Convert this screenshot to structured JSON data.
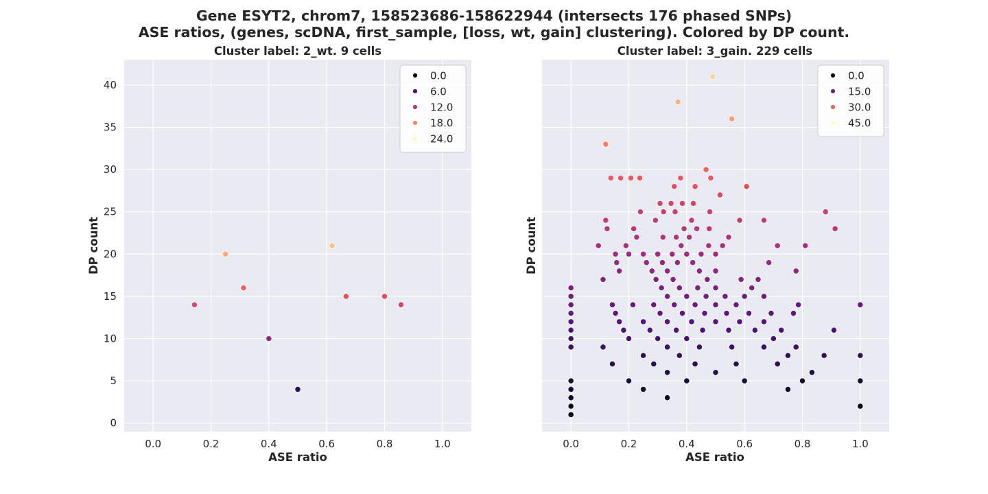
{
  "figure": {
    "title_line1": "Gene ESYT2, chrom7, 158523686-158622944 (intersects 176 phased SNPs)",
    "title_line2": "ASE ratios, (genes, scDNA, first_sample, [loss, wt, gain] clustering). Colored by DP count."
  },
  "chart_data": [
    {
      "type": "scatter",
      "title": "Cluster label: 2_wt. 9 cells",
      "xlabel": "ASE ratio",
      "ylabel": "DP count",
      "xlim": [
        -0.1,
        1.1
      ],
      "ylim": [
        -1,
        43
      ],
      "xticks": [
        0.0,
        0.2,
        0.4,
        0.6,
        0.8,
        1.0
      ],
      "xtick_labels": [
        "0.0",
        "0.2",
        "0.4",
        "0.6",
        "0.8",
        "1.0"
      ],
      "yticks": [
        0,
        5,
        10,
        15,
        20,
        25,
        30,
        35,
        40
      ],
      "ytick_labels": [
        "0",
        "5",
        "10",
        "15",
        "20",
        "25",
        "30",
        "35",
        "40"
      ],
      "show_y_ticklabels": true,
      "grid": true,
      "legend_position": "top-right",
      "color_map": "magma",
      "color_range": [
        0,
        24
      ],
      "legend": [
        {
          "label": "0.0",
          "value": 0
        },
        {
          "label": "6.0",
          "value": 6
        },
        {
          "label": "12.0",
          "value": 12
        },
        {
          "label": "18.0",
          "value": 18
        },
        {
          "label": "24.0",
          "value": 24
        }
      ],
      "points": [
        [
          0.143,
          14
        ],
        [
          0.25,
          20
        ],
        [
          0.3125,
          16
        ],
        [
          0.4,
          10
        ],
        [
          0.5,
          4
        ],
        [
          0.619,
          21
        ],
        [
          0.667,
          15
        ],
        [
          0.8,
          15
        ],
        [
          0.857,
          14
        ]
      ]
    },
    {
      "type": "scatter",
      "title": "Cluster label: 3_gain. 229 cells",
      "xlabel": "ASE ratio",
      "ylabel": "DP count",
      "xlim": [
        -0.1,
        1.1
      ],
      "ylim": [
        -1,
        43
      ],
      "xticks": [
        0.0,
        0.2,
        0.4,
        0.6,
        0.8,
        1.0
      ],
      "xtick_labels": [
        "0.0",
        "0.2",
        "0.4",
        "0.6",
        "0.8",
        "1.0"
      ],
      "yticks": [
        0,
        5,
        10,
        15,
        20,
        25,
        30,
        35,
        40
      ],
      "ytick_labels": [],
      "show_y_ticklabels": false,
      "grid": true,
      "legend_position": "top-right",
      "color_map": "magma",
      "color_range": [
        0,
        45
      ],
      "legend": [
        {
          "label": "0.0",
          "value": 0
        },
        {
          "label": "15.0",
          "value": 15
        },
        {
          "label": "30.0",
          "value": 30
        },
        {
          "label": "45.0",
          "value": 45
        }
      ],
      "points": [
        [
          0.0,
          1
        ],
        [
          0.0,
          2
        ],
        [
          0.0,
          3
        ],
        [
          0.0,
          4
        ],
        [
          0.0,
          5
        ],
        [
          0.0,
          9
        ],
        [
          0.0,
          10
        ],
        [
          0.0,
          11
        ],
        [
          0.0,
          12
        ],
        [
          0.0,
          13
        ],
        [
          0.0,
          14
        ],
        [
          0.0,
          15
        ],
        [
          0.0,
          16
        ],
        [
          0.095,
          21
        ],
        [
          0.111,
          9
        ],
        [
          0.111,
          17
        ],
        [
          0.12,
          24
        ],
        [
          0.12,
          33
        ],
        [
          0.125,
          23
        ],
        [
          0.138,
          29
        ],
        [
          0.143,
          7
        ],
        [
          0.143,
          14
        ],
        [
          0.154,
          13
        ],
        [
          0.154,
          20
        ],
        [
          0.158,
          19
        ],
        [
          0.167,
          12
        ],
        [
          0.167,
          18
        ],
        [
          0.172,
          29
        ],
        [
          0.182,
          11
        ],
        [
          0.19,
          21
        ],
        [
          0.2,
          5
        ],
        [
          0.2,
          10
        ],
        [
          0.2,
          20
        ],
        [
          0.207,
          29
        ],
        [
          0.214,
          14
        ],
        [
          0.217,
          23
        ],
        [
          0.227,
          22
        ],
        [
          0.238,
          29
        ],
        [
          0.24,
          25
        ],
        [
          0.25,
          4
        ],
        [
          0.25,
          8
        ],
        [
          0.25,
          12
        ],
        [
          0.25,
          20
        ],
        [
          0.261,
          19
        ],
        [
          0.273,
          11
        ],
        [
          0.28,
          18
        ],
        [
          0.286,
          7
        ],
        [
          0.286,
          14
        ],
        [
          0.294,
          17
        ],
        [
          0.292,
          24
        ],
        [
          0.3,
          10
        ],
        [
          0.3,
          20
        ],
        [
          0.308,
          13
        ],
        [
          0.308,
          26
        ],
        [
          0.313,
          16
        ],
        [
          0.316,
          19
        ],
        [
          0.318,
          22
        ],
        [
          0.32,
          25
        ],
        [
          0.333,
          3
        ],
        [
          0.333,
          6
        ],
        [
          0.333,
          9
        ],
        [
          0.333,
          12
        ],
        [
          0.333,
          15
        ],
        [
          0.333,
          18
        ],
        [
          0.346,
          26
        ],
        [
          0.353,
          17
        ],
        [
          0.35,
          20
        ],
        [
          0.357,
          14
        ],
        [
          0.357,
          28
        ],
        [
          0.36,
          25
        ],
        [
          0.364,
          11
        ],
        [
          0.364,
          22
        ],
        [
          0.368,
          19
        ],
        [
          0.37,
          38
        ],
        [
          0.375,
          8
        ],
        [
          0.375,
          16
        ],
        [
          0.379,
          29
        ],
        [
          0.381,
          21
        ],
        [
          0.385,
          13
        ],
        [
          0.385,
          26
        ],
        [
          0.391,
          23
        ],
        [
          0.4,
          5
        ],
        [
          0.4,
          10
        ],
        [
          0.4,
          15
        ],
        [
          0.4,
          20
        ],
        [
          0.409,
          22
        ],
        [
          0.417,
          12
        ],
        [
          0.417,
          24
        ],
        [
          0.421,
          19
        ],
        [
          0.423,
          26
        ],
        [
          0.429,
          7
        ],
        [
          0.429,
          14
        ],
        [
          0.429,
          28
        ],
        [
          0.435,
          23
        ],
        [
          0.438,
          16
        ],
        [
          0.444,
          9
        ],
        [
          0.444,
          18
        ],
        [
          0.45,
          20
        ],
        [
          0.455,
          11
        ],
        [
          0.462,
          13
        ],
        [
          0.467,
          15
        ],
        [
          0.467,
          30
        ],
        [
          0.471,
          17
        ],
        [
          0.478,
          23
        ],
        [
          0.476,
          21
        ],
        [
          0.48,
          25
        ],
        [
          0.483,
          29
        ],
        [
          0.49,
          41
        ],
        [
          0.5,
          6
        ],
        [
          0.5,
          12
        ],
        [
          0.5,
          14
        ],
        [
          0.5,
          16
        ],
        [
          0.5,
          18
        ],
        [
          0.5,
          20
        ],
        [
          0.515,
          27
        ],
        [
          0.524,
          21
        ],
        [
          0.533,
          15
        ],
        [
          0.538,
          13
        ],
        [
          0.545,
          11
        ],
        [
          0.545,
          22
        ],
        [
          0.556,
          9
        ],
        [
          0.556,
          36
        ],
        [
          0.571,
          7
        ],
        [
          0.571,
          14
        ],
        [
          0.583,
          12
        ],
        [
          0.588,
          17
        ],
        [
          0.583,
          24
        ],
        [
          0.6,
          5
        ],
        [
          0.6,
          15
        ],
        [
          0.607,
          28
        ],
        [
          0.615,
          13
        ],
        [
          0.625,
          16
        ],
        [
          0.636,
          11
        ],
        [
          0.647,
          17
        ],
        [
          0.667,
          9
        ],
        [
          0.667,
          12
        ],
        [
          0.667,
          15
        ],
        [
          0.667,
          24
        ],
        [
          0.684,
          19
        ],
        [
          0.692,
          13
        ],
        [
          0.7,
          10
        ],
        [
          0.714,
          7
        ],
        [
          0.714,
          21
        ],
        [
          0.727,
          11
        ],
        [
          0.75,
          4
        ],
        [
          0.75,
          8
        ],
        [
          0.769,
          13
        ],
        [
          0.778,
          9
        ],
        [
          0.778,
          18
        ],
        [
          0.786,
          14
        ],
        [
          0.8,
          5
        ],
        [
          0.81,
          21
        ],
        [
          0.833,
          6
        ],
        [
          0.875,
          8
        ],
        [
          0.88,
          25
        ],
        [
          0.909,
          11
        ],
        [
          0.913,
          23
        ],
        [
          1.0,
          2
        ],
        [
          1.0,
          5
        ],
        [
          1.0,
          8
        ],
        [
          1.0,
          14
        ]
      ]
    }
  ]
}
